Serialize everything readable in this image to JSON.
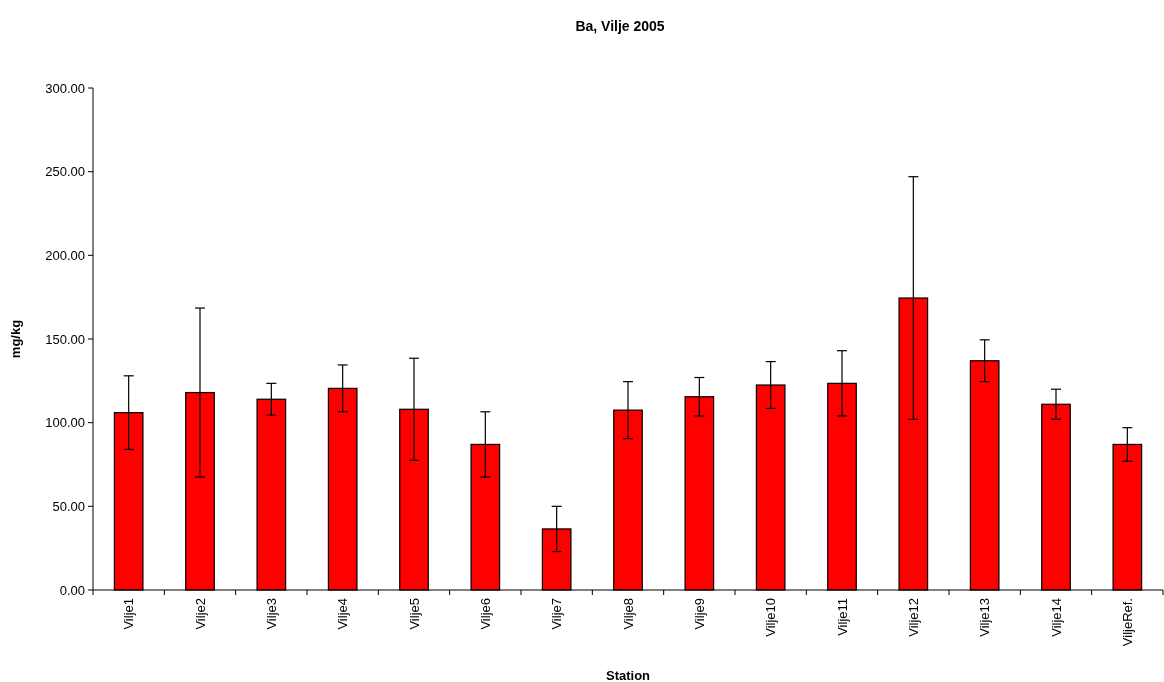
{
  "chart_data": {
    "type": "bar",
    "title": "Ba, Vilje 2005",
    "xlabel": "Station",
    "ylabel": "mg/kg",
    "categories": [
      "Vilje1",
      "Vilje2",
      "Vilje3",
      "Vilje4",
      "Vilje5",
      "Vilje6",
      "Vilje7",
      "Vilje8",
      "Vilje9",
      "Vilje10",
      "Vilje11",
      "Vilje12",
      "Vilje13",
      "Vilje14",
      "ViljeRef."
    ],
    "values": [
      106,
      118,
      114,
      120.5,
      108,
      87,
      36.5,
      107.5,
      115.5,
      122.5,
      123.5,
      174.5,
      137,
      111,
      87
    ],
    "errors": [
      22,
      50.5,
      9.5,
      14,
      30.5,
      19.5,
      13.5,
      17,
      11.5,
      14,
      19.5,
      72.5,
      12.5,
      9,
      10
    ],
    "color": "#ff0000",
    "ylim": [
      0,
      300
    ],
    "yticks": [
      {
        "value": 0,
        "label": "0.00"
      },
      {
        "value": 50,
        "label": "50.00"
      },
      {
        "value": 100,
        "label": "100.00"
      },
      {
        "value": 150,
        "label": "150.00"
      },
      {
        "value": 200,
        "label": "200.00"
      },
      {
        "value": 250,
        "label": "250.00"
      },
      {
        "value": 300,
        "label": "300.00"
      }
    ],
    "grid": false
  }
}
